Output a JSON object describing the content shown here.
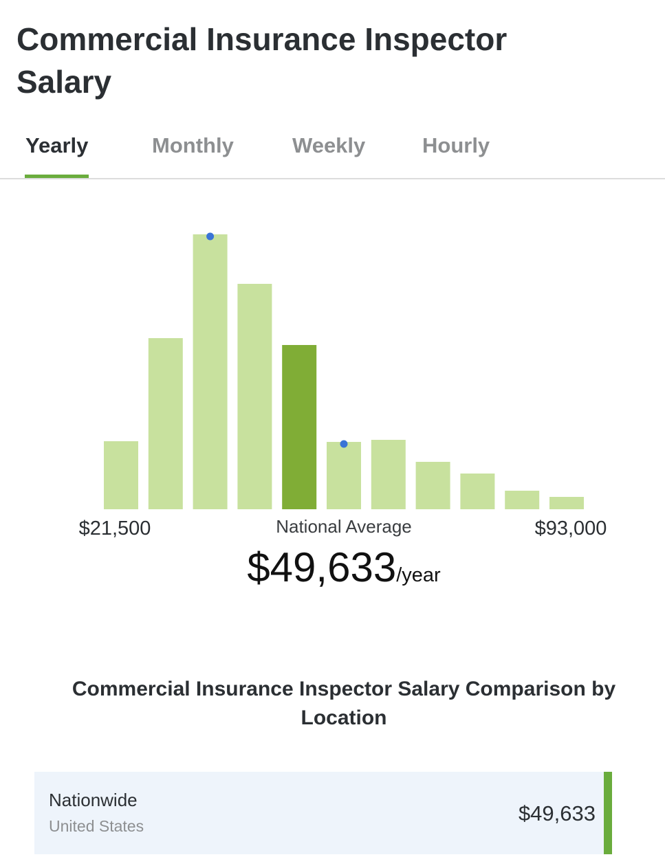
{
  "header": {
    "title": "Commercial Insurance Inspector Salary"
  },
  "tabs": [
    {
      "label": "Yearly",
      "active": true
    },
    {
      "label": "Monthly",
      "active": false
    },
    {
      "label": "Weekly",
      "active": false
    },
    {
      "label": "Hourly",
      "active": false
    }
  ],
  "chart_data": {
    "type": "bar",
    "values": [
      99,
      249,
      400,
      328,
      239,
      98,
      101,
      69,
      52,
      27,
      18
    ],
    "color": "#c8e19e",
    "highlight_color": "#80ad36",
    "highlight_index": 4,
    "marker_color": "#3a74d6",
    "marker_indices": [
      2,
      5
    ],
    "min_label": "$21,500",
    "max_label": "$93,000",
    "average_label": "National Average",
    "average": "$49,633",
    "average_unit": "/year"
  },
  "comparison": {
    "title": "Commercial Insurance Inspector Salary Comparison by Location",
    "rows": [
      {
        "name": "Nationwide",
        "location": "United States",
        "value": "$49,633"
      }
    ]
  }
}
